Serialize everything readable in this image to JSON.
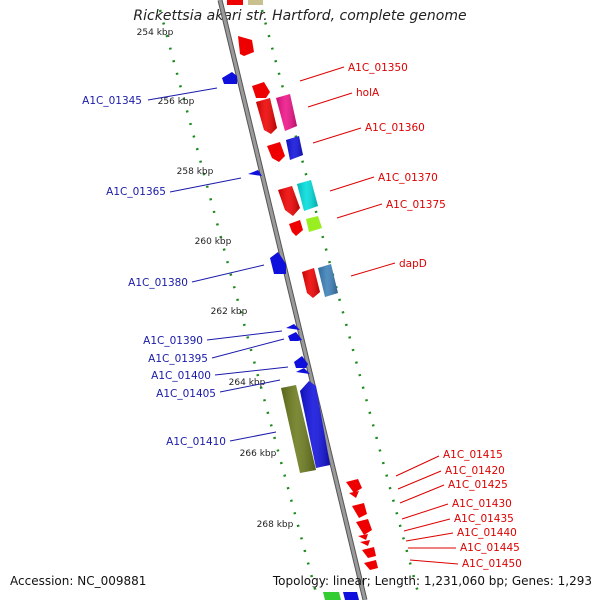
{
  "title": "Rickettsia akari str. Hartford, complete genome",
  "footer": {
    "accession": "Accession: NC_009881",
    "summary": "Topology: linear; Length: 1,231,060 bp; Genes: 1,293"
  },
  "colors": {
    "backbone": "#8a8a8a",
    "forward_label": "#dd0000",
    "reverse_label": "#1a1aaa",
    "tick_dots": "#1c8a1c"
  },
  "ruler_labels": [
    "254 kbp",
    "256 kbp",
    "258 kbp",
    "260 kbp",
    "262 kbp",
    "264 kbp",
    "266 kbp",
    "268 kbp"
  ],
  "reverse_genes": [
    {
      "label": "A1C_01345",
      "color": "#1010dd"
    },
    {
      "label": "A1C_01365",
      "color": "#1010dd"
    },
    {
      "label": "A1C_01380",
      "color": "#1010dd"
    },
    {
      "label": "A1C_01390",
      "color": "#1010dd"
    },
    {
      "label": "A1C_01395",
      "color": "#1010dd"
    },
    {
      "label": "A1C_01400",
      "color": "#1010dd"
    },
    {
      "label": "A1C_01405",
      "color": "#6b7a1c"
    },
    {
      "label": "A1C_01410",
      "color": "#1010dd"
    }
  ],
  "forward_genes": [
    {
      "label": "A1C_01350",
      "color": "#ee0000"
    },
    {
      "label": "holA",
      "color": "#ee1188"
    },
    {
      "label": "A1C_01360",
      "color": "#1010dd"
    },
    {
      "label": "A1C_01370",
      "color": "#00dddd"
    },
    {
      "label": "A1C_01375",
      "color": "#99ee22"
    },
    {
      "label": "dapD",
      "color": "#3b7fb8"
    },
    {
      "label": "A1C_01415",
      "color": "#ee0000"
    },
    {
      "label": "A1C_01420",
      "color": "#ee0000"
    },
    {
      "label": "A1C_01425",
      "color": "#ee0000"
    },
    {
      "label": "A1C_01430",
      "color": "#ee0000"
    },
    {
      "label": "A1C_01435",
      "color": "#ee0000"
    },
    {
      "label": "A1C_01440",
      "color": "#ee0000"
    },
    {
      "label": "A1C_01445",
      "color": "#ee0000"
    },
    {
      "label": "A1C_01450",
      "color": "#ee0000"
    }
  ]
}
